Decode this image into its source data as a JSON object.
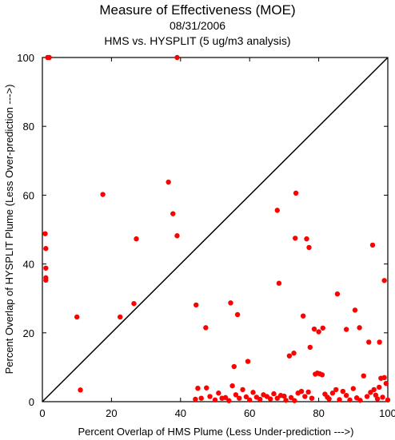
{
  "chart_data": {
    "type": "scatter",
    "title": "Measure of Effectiveness (MOE)",
    "subtitle_date": "08/31/2006",
    "subtitle_analysis": "HMS vs. HYSPLIT  (5 ug/m3 analysis)",
    "xlabel": "Percent Overlap of HMS Plume (Less Under-prediction --->)",
    "ylabel": "Percent Overlap of HYSPLIT Plume (Less Over-prediction --->)",
    "xlim": [
      0,
      100
    ],
    "ylim": [
      0,
      100
    ],
    "xticks": [
      0,
      20,
      40,
      60,
      80,
      100
    ],
    "yticks": [
      0,
      20,
      40,
      60,
      80,
      100
    ],
    "grid": false,
    "reference_line": "y = x",
    "point_color": "#ff0000",
    "line_color": "#000000",
    "series": [
      {
        "points": [
          [
            1.5,
            100
          ],
          [
            2,
            100
          ],
          [
            39,
            100
          ],
          [
            0.8,
            48.8
          ],
          [
            1,
            44.5
          ],
          [
            1,
            38.8
          ],
          [
            1,
            36
          ],
          [
            1,
            35.3
          ],
          [
            10,
            24.6
          ],
          [
            11,
            3.4
          ],
          [
            17.5,
            60.2
          ],
          [
            22.5,
            24.6
          ],
          [
            26.5,
            28.5
          ],
          [
            27.2,
            47.3
          ],
          [
            36.5,
            63.8
          ],
          [
            37.8,
            54.6
          ],
          [
            39,
            48.2
          ],
          [
            44.5,
            28.1
          ],
          [
            47.3,
            21.5
          ],
          [
            54.5,
            28.7
          ],
          [
            55.5,
            10.2
          ],
          [
            56.5,
            25.3
          ],
          [
            59.5,
            11.7
          ],
          [
            68,
            55.6
          ],
          [
            68.5,
            34.4
          ],
          [
            71.5,
            13.3
          ],
          [
            72.8,
            14.1
          ],
          [
            73.2,
            47.5
          ],
          [
            73.4,
            60.6
          ],
          [
            75.5,
            24.9
          ],
          [
            76.5,
            47.3
          ],
          [
            77.2,
            44.8
          ],
          [
            77.5,
            15.8
          ],
          [
            78.7,
            21.1
          ],
          [
            80,
            20.3
          ],
          [
            81.2,
            21.4
          ],
          [
            85.4,
            31.3
          ],
          [
            88,
            21
          ],
          [
            90.5,
            26.6
          ],
          [
            91.8,
            21.5
          ],
          [
            94.5,
            17.3
          ],
          [
            95.6,
            45.5
          ],
          [
            97.6,
            17.3
          ],
          [
            99,
            35.2
          ],
          [
            44.3,
            0.7
          ],
          [
            45,
            3.9
          ],
          [
            46,
            1
          ],
          [
            47.5,
            4
          ],
          [
            48.5,
            1.5
          ],
          [
            50,
            0.5
          ],
          [
            51,
            2.5
          ],
          [
            52,
            1
          ],
          [
            53,
            1.2
          ],
          [
            54,
            0.3
          ],
          [
            55,
            4.6
          ],
          [
            56,
            2
          ],
          [
            57,
            1
          ],
          [
            58,
            3.5
          ],
          [
            59,
            1.4
          ],
          [
            60,
            0.5
          ],
          [
            61,
            2.7
          ],
          [
            62,
            1.3
          ],
          [
            63,
            0.7
          ],
          [
            64,
            2
          ],
          [
            65,
            1.5
          ],
          [
            66,
            0.8
          ],
          [
            67,
            2.3
          ],
          [
            68,
            1
          ],
          [
            69,
            1.8
          ],
          [
            70,
            1.6
          ],
          [
            70.5,
            0.4
          ],
          [
            72,
            1.2
          ],
          [
            73,
            0.3
          ],
          [
            74,
            2.5
          ],
          [
            75,
            3
          ],
          [
            76,
            1.5
          ],
          [
            77,
            2.8
          ],
          [
            78,
            1
          ],
          [
            79,
            8
          ],
          [
            79.6,
            8.3
          ],
          [
            80.3,
            8.1
          ],
          [
            81,
            7.8
          ],
          [
            81.8,
            2.2
          ],
          [
            82.5,
            1.3
          ],
          [
            83,
            0.8
          ],
          [
            84,
            2.5
          ],
          [
            85,
            3.5
          ],
          [
            86,
            0.6
          ],
          [
            87,
            3
          ],
          [
            88,
            1.8
          ],
          [
            89,
            0.5
          ],
          [
            90,
            3.8
          ],
          [
            91,
            1.1
          ],
          [
            92,
            0.4
          ],
          [
            93,
            7.5
          ],
          [
            94,
            1.5
          ],
          [
            95,
            2.7
          ],
          [
            96,
            3.5
          ],
          [
            97,
            0.8
          ],
          [
            98,
            6.8
          ],
          [
            98.5,
            1.3
          ],
          [
            99,
            7
          ],
          [
            99.5,
            5.3
          ],
          [
            100,
            0.5
          ],
          [
            96.5,
            1.9
          ],
          [
            97.5,
            4.2
          ]
        ]
      }
    ]
  }
}
